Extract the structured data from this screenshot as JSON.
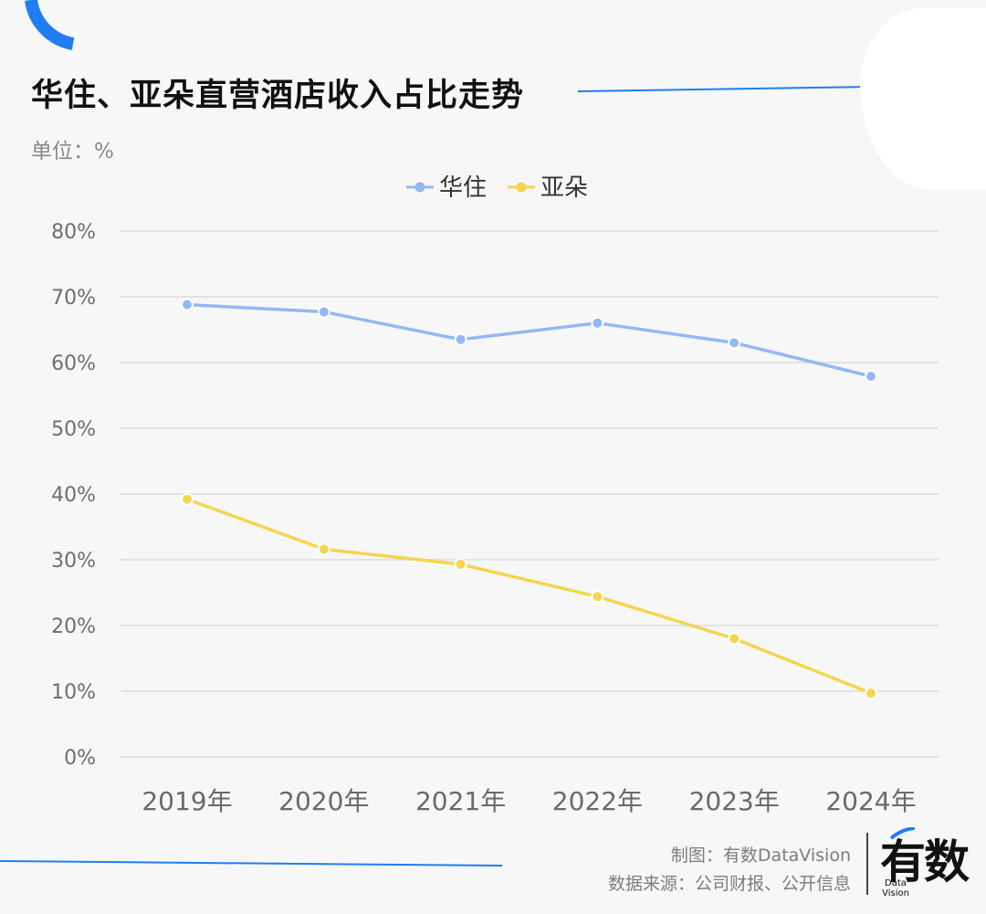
{
  "header": {
    "title": "华住、亚朵直营酒店收入占比走势",
    "unit": "单位：%"
  },
  "footer": {
    "credit": "制图：有数DataVision",
    "source": "数据来源：公司财报、公开信息"
  },
  "logo": {
    "mark": "有数",
    "sub_line1": "Data",
    "sub_line2": "Vision"
  },
  "colors": {
    "accent_blue": "#1e7ef2",
    "huazhu": "#93b8f5",
    "atour": "#f5d54e",
    "grid": "#dcdcdc"
  },
  "chart_data": {
    "type": "line",
    "title": "华住、亚朵直营酒店收入占比走势",
    "ylabel": "单位：%",
    "categories": [
      "2019年",
      "2020年",
      "2021年",
      "2022年",
      "2023年",
      "2024年"
    ],
    "y_ticks": [
      "0%",
      "10%",
      "20%",
      "30%",
      "40%",
      "50%",
      "60%",
      "70%",
      "80%"
    ],
    "ylim": [
      0,
      80
    ],
    "grid": true,
    "legend_position": "top-center",
    "series": [
      {
        "name": "华住",
        "color": "#93b8f5",
        "values": [
          68.8,
          67.7,
          63.5,
          66.0,
          63.0,
          57.9
        ]
      },
      {
        "name": "亚朵",
        "color": "#f5d54e",
        "values": [
          39.2,
          31.6,
          29.3,
          24.4,
          18.0,
          9.7
        ]
      }
    ]
  }
}
